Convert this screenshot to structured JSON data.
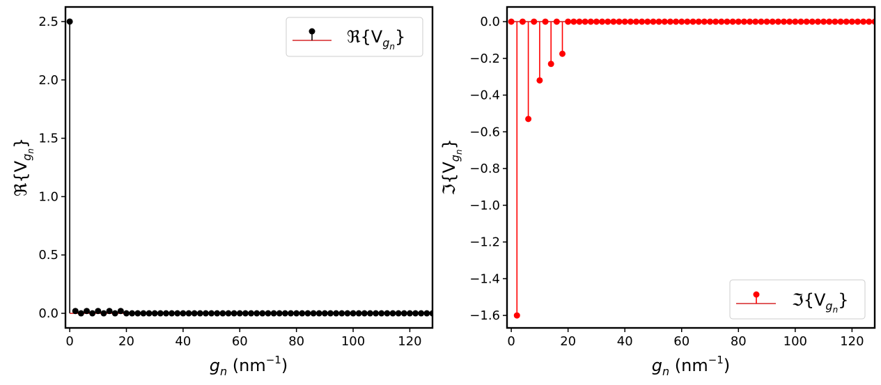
{
  "chart_data": [
    {
      "type": "stem",
      "series_name": "ℜ{V_gn}",
      "legend": {
        "label": "ℜ{V",
        "sub": "g",
        "subsub": "n",
        "close": "}",
        "location": "upper right"
      },
      "xlabel": {
        "main": "g",
        "sub": "n",
        "unit": " (nm",
        "exp": "−1",
        "close": ")"
      },
      "ylabel": {
        "main": "ℜ{V",
        "sub": "g",
        "subsub": "n",
        "close": "}"
      },
      "xlim": [
        -1.5,
        128
      ],
      "ylim": [
        -0.125,
        2.625
      ],
      "xticks": [
        0,
        20,
        40,
        60,
        80,
        100,
        120
      ],
      "xtick_labels": [
        "0",
        "20",
        "40",
        "60",
        "80",
        "100",
        "120"
      ],
      "yticks": [
        0.0,
        0.5,
        1.0,
        1.5,
        2.0,
        2.5
      ],
      "ytick_labels": [
        "0.0",
        "0.5",
        "1.0",
        "1.5",
        "2.0",
        "2.5"
      ],
      "x": [
        0,
        2,
        4,
        6,
        8,
        10,
        12,
        14,
        16,
        18,
        20,
        22,
        24,
        26,
        28,
        30,
        32,
        34,
        36,
        38,
        40,
        42,
        44,
        46,
        48,
        50,
        52,
        54,
        56,
        58,
        60,
        62,
        64,
        66,
        68,
        70,
        72,
        74,
        76,
        78,
        80,
        82,
        84,
        86,
        88,
        90,
        92,
        94,
        96,
        98,
        100,
        102,
        104,
        106,
        108,
        110,
        112,
        114,
        116,
        118,
        120,
        122,
        124,
        126,
        128
      ],
      "values": [
        2.5,
        0.02,
        0,
        0.02,
        0,
        0.02,
        0,
        0.02,
        0,
        0.02,
        0,
        0,
        0,
        0,
        0,
        0,
        0,
        0,
        0,
        0,
        0,
        0,
        0,
        0,
        0,
        0,
        0,
        0,
        0,
        0,
        0,
        0,
        0,
        0,
        0,
        0,
        0,
        0,
        0,
        0,
        0,
        0,
        0,
        0,
        0,
        0,
        0,
        0,
        0,
        0,
        0,
        0,
        0,
        0,
        0,
        0,
        0,
        0,
        0,
        0,
        0,
        0,
        0,
        0,
        0
      ],
      "marker_color": "#000000",
      "stem_color": "#000000",
      "baseline_color": "#d62728"
    },
    {
      "type": "stem",
      "series_name": "ℑ{V_gn}",
      "legend": {
        "label": "ℑ{V",
        "sub": "g",
        "subsub": "n",
        "close": "}",
        "location": "lower right"
      },
      "xlabel": {
        "main": "g",
        "sub": "n",
        "unit": " (nm",
        "exp": "−1",
        "close": ")"
      },
      "ylabel": {
        "main": "ℑ{V",
        "sub": "g",
        "subsub": "n",
        "close": "}"
      },
      "xlim": [
        -1.5,
        128
      ],
      "ylim": [
        -1.668,
        0.08
      ],
      "xticks": [
        0,
        20,
        40,
        60,
        80,
        100,
        120
      ],
      "xtick_labels": [
        "0",
        "20",
        "40",
        "60",
        "80",
        "100",
        "120"
      ],
      "yticks": [
        0.0,
        -0.2,
        -0.4,
        -0.6,
        -0.8,
        -1.0,
        -1.2,
        -1.4,
        -1.6
      ],
      "ytick_labels": [
        "0.0",
        "−0.2",
        "−0.4",
        "−0.6",
        "−0.8",
        "−1.0",
        "−1.2",
        "−1.4",
        "−1.6"
      ],
      "x": [
        0,
        2,
        4,
        6,
        8,
        10,
        12,
        14,
        16,
        18,
        20,
        22,
        24,
        26,
        28,
        30,
        32,
        34,
        36,
        38,
        40,
        42,
        44,
        46,
        48,
        50,
        52,
        54,
        56,
        58,
        60,
        62,
        64,
        66,
        68,
        70,
        72,
        74,
        76,
        78,
        80,
        82,
        84,
        86,
        88,
        90,
        92,
        94,
        96,
        98,
        100,
        102,
        104,
        106,
        108,
        110,
        112,
        114,
        116,
        118,
        120,
        122,
        124,
        126,
        128
      ],
      "values": [
        0,
        -1.6,
        0,
        -0.53,
        0,
        -0.32,
        0,
        -0.23,
        0,
        -0.175,
        0,
        0,
        0,
        0,
        0,
        0,
        0,
        0,
        0,
        0,
        0,
        0,
        0,
        0,
        0,
        0,
        0,
        0,
        0,
        0,
        0,
        0,
        0,
        0,
        0,
        0,
        0,
        0,
        0,
        0,
        0,
        0,
        0,
        0,
        0,
        0,
        0,
        0,
        0,
        0,
        0,
        0,
        0,
        0,
        0,
        0,
        0,
        0,
        0,
        0,
        0,
        0,
        0,
        0,
        0
      ],
      "marker_color": "#ff0000",
      "stem_color": "#ff0000",
      "baseline_color": "#d62728"
    }
  ]
}
